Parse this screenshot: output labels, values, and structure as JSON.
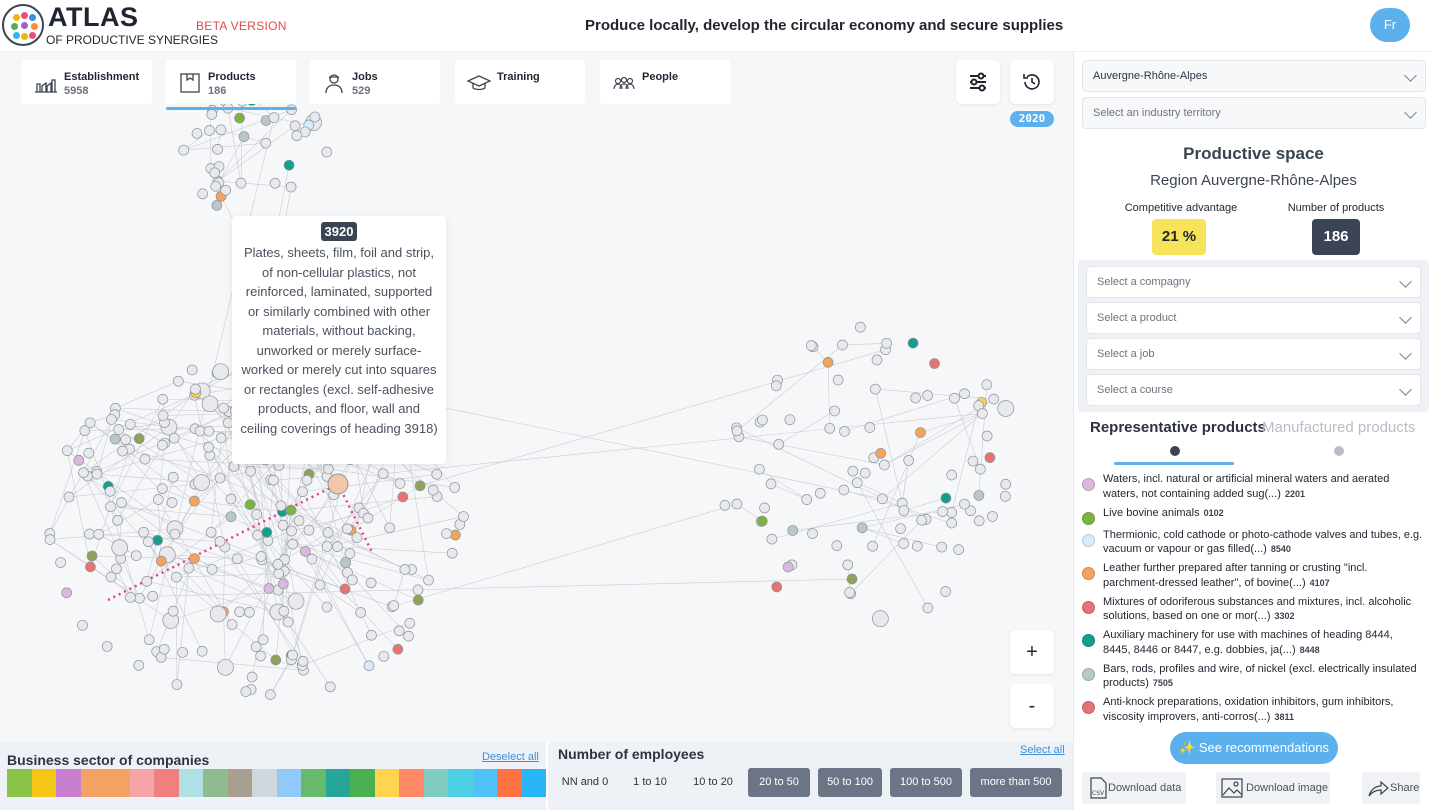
{
  "header": {
    "logo_title": "ATLAS",
    "logo_subtitle": "OF PRODUCTIVE SYNERGIES",
    "beta": "BETA VERSION",
    "tagline": "Produce locally, develop the circular economy and secure supplies",
    "lang": "Fr"
  },
  "tabs": [
    {
      "label": "Establishment",
      "count": "5958",
      "icon": "factory-icon"
    },
    {
      "label": "Products",
      "count": "186",
      "icon": "box-icon"
    },
    {
      "label": "Jobs",
      "count": "529",
      "icon": "worker-icon"
    },
    {
      "label": "Training",
      "count": "",
      "icon": "graduation-cap-icon"
    },
    {
      "label": "People",
      "count": "",
      "icon": "people-icon"
    }
  ],
  "year": "2020",
  "tooltip": {
    "code": "3920",
    "text": "Plates, sheets, film, foil and strip, of non-cellular plastics, not reinforced, laminated, supported or similarly combined with other materials, without backing, unworked or merely surface-worked or merely cut into squares or rectangles (excl. self-adhesive products, and floor, wall and ceiling coverings of heading 3918)"
  },
  "zoom": {
    "in": "+",
    "out": "-"
  },
  "business_sector": {
    "title": "Business sector of companies",
    "deselect": "Deselect all",
    "colors": [
      "#8bc34a",
      "#f5c518",
      "#c97fd0",
      "#f4a261",
      "#f4a261",
      "#f4a6a6",
      "#f08080",
      "#b0e0e6",
      "#8fbc8f",
      "#a89f91",
      "#cfd8dc",
      "#90caf9",
      "#66bb6a",
      "#26a69a",
      "#4caf50",
      "#ffd54f",
      "#ff8a65",
      "#80cbc4",
      "#4dd0e1",
      "#4fc3f7",
      "#ff7043",
      "#29b6f6"
    ]
  },
  "employees": {
    "title": "Number of employees",
    "select_all": "Select all",
    "options": [
      {
        "label": "NN and 0",
        "selected": false
      },
      {
        "label": "1 to 10",
        "selected": false
      },
      {
        "label": "10 to 20",
        "selected": false
      },
      {
        "label": "20 to 50",
        "selected": true
      },
      {
        "label": "50 to 100",
        "selected": true
      },
      {
        "label": "100 to 500",
        "selected": true
      },
      {
        "label": "more than 500",
        "selected": true
      }
    ]
  },
  "panel": {
    "region_select": "Auvergne-Rhône-Alpes",
    "territory_select": "Select an industry territory",
    "title": "Productive space",
    "subtitle": "Region Auvergne-Rhône-Alpes",
    "competitive_label": "Competitive advantage",
    "competitive_value": "21 %",
    "products_label": "Number of products",
    "products_value": "186",
    "filters": [
      "Select a compagny",
      "Select a product",
      "Select a job",
      "Select a course"
    ],
    "tab_representative": "Representative products",
    "tab_manufactured": "Manufactured products",
    "products": [
      {
        "text": "Waters, incl. natural or artificial mineral waters and aerated waters, not containing added sug(...)",
        "code": "2201",
        "color": "#dcb8dc",
        "lines": 2
      },
      {
        "text": "Live bovine animals",
        "code": "0102",
        "color": "#7cb342",
        "lines": 1
      },
      {
        "text": "Thermionic, cold cathode or photo-cathode valves and tubes, e.g. vacuum or vapour or gas filled(...)",
        "code": "8540",
        "color": "#d6ecfb",
        "lines": 2
      },
      {
        "text": "Leather further prepared after tanning or crusting \"incl. parchment-dressed leather\", of bovine(...)",
        "code": "4107",
        "color": "#f4a35c",
        "lines": 2
      },
      {
        "text": "Mixtures of odoriferous substances and mixtures, incl. alcoholic solutions, based on one or mor(...)",
        "code": "3302",
        "color": "#e57373",
        "lines": 2
      },
      {
        "text": "Auxiliary machinery for use with machines of heading 8444, 8445, 8446 or 8447, e.g. dobbies, ja(...)",
        "code": "8448",
        "color": "#169e8c",
        "lines": 2
      },
      {
        "text": "Bars, rods, profiles and wire, of nickel (excl. electrically insulated products)",
        "code": "7505",
        "color": "#b8c8c8",
        "lines": 2
      },
      {
        "text": "Anti-knock preparations, oxidation inhibitors, gum inhibitors, viscosity improvers, anti-corros(...)",
        "code": "3811",
        "color": "#e57373",
        "lines": 2
      }
    ],
    "recommend": "See recommendations",
    "download_data": "Download data",
    "download_image": "Download image",
    "share": "Share"
  }
}
